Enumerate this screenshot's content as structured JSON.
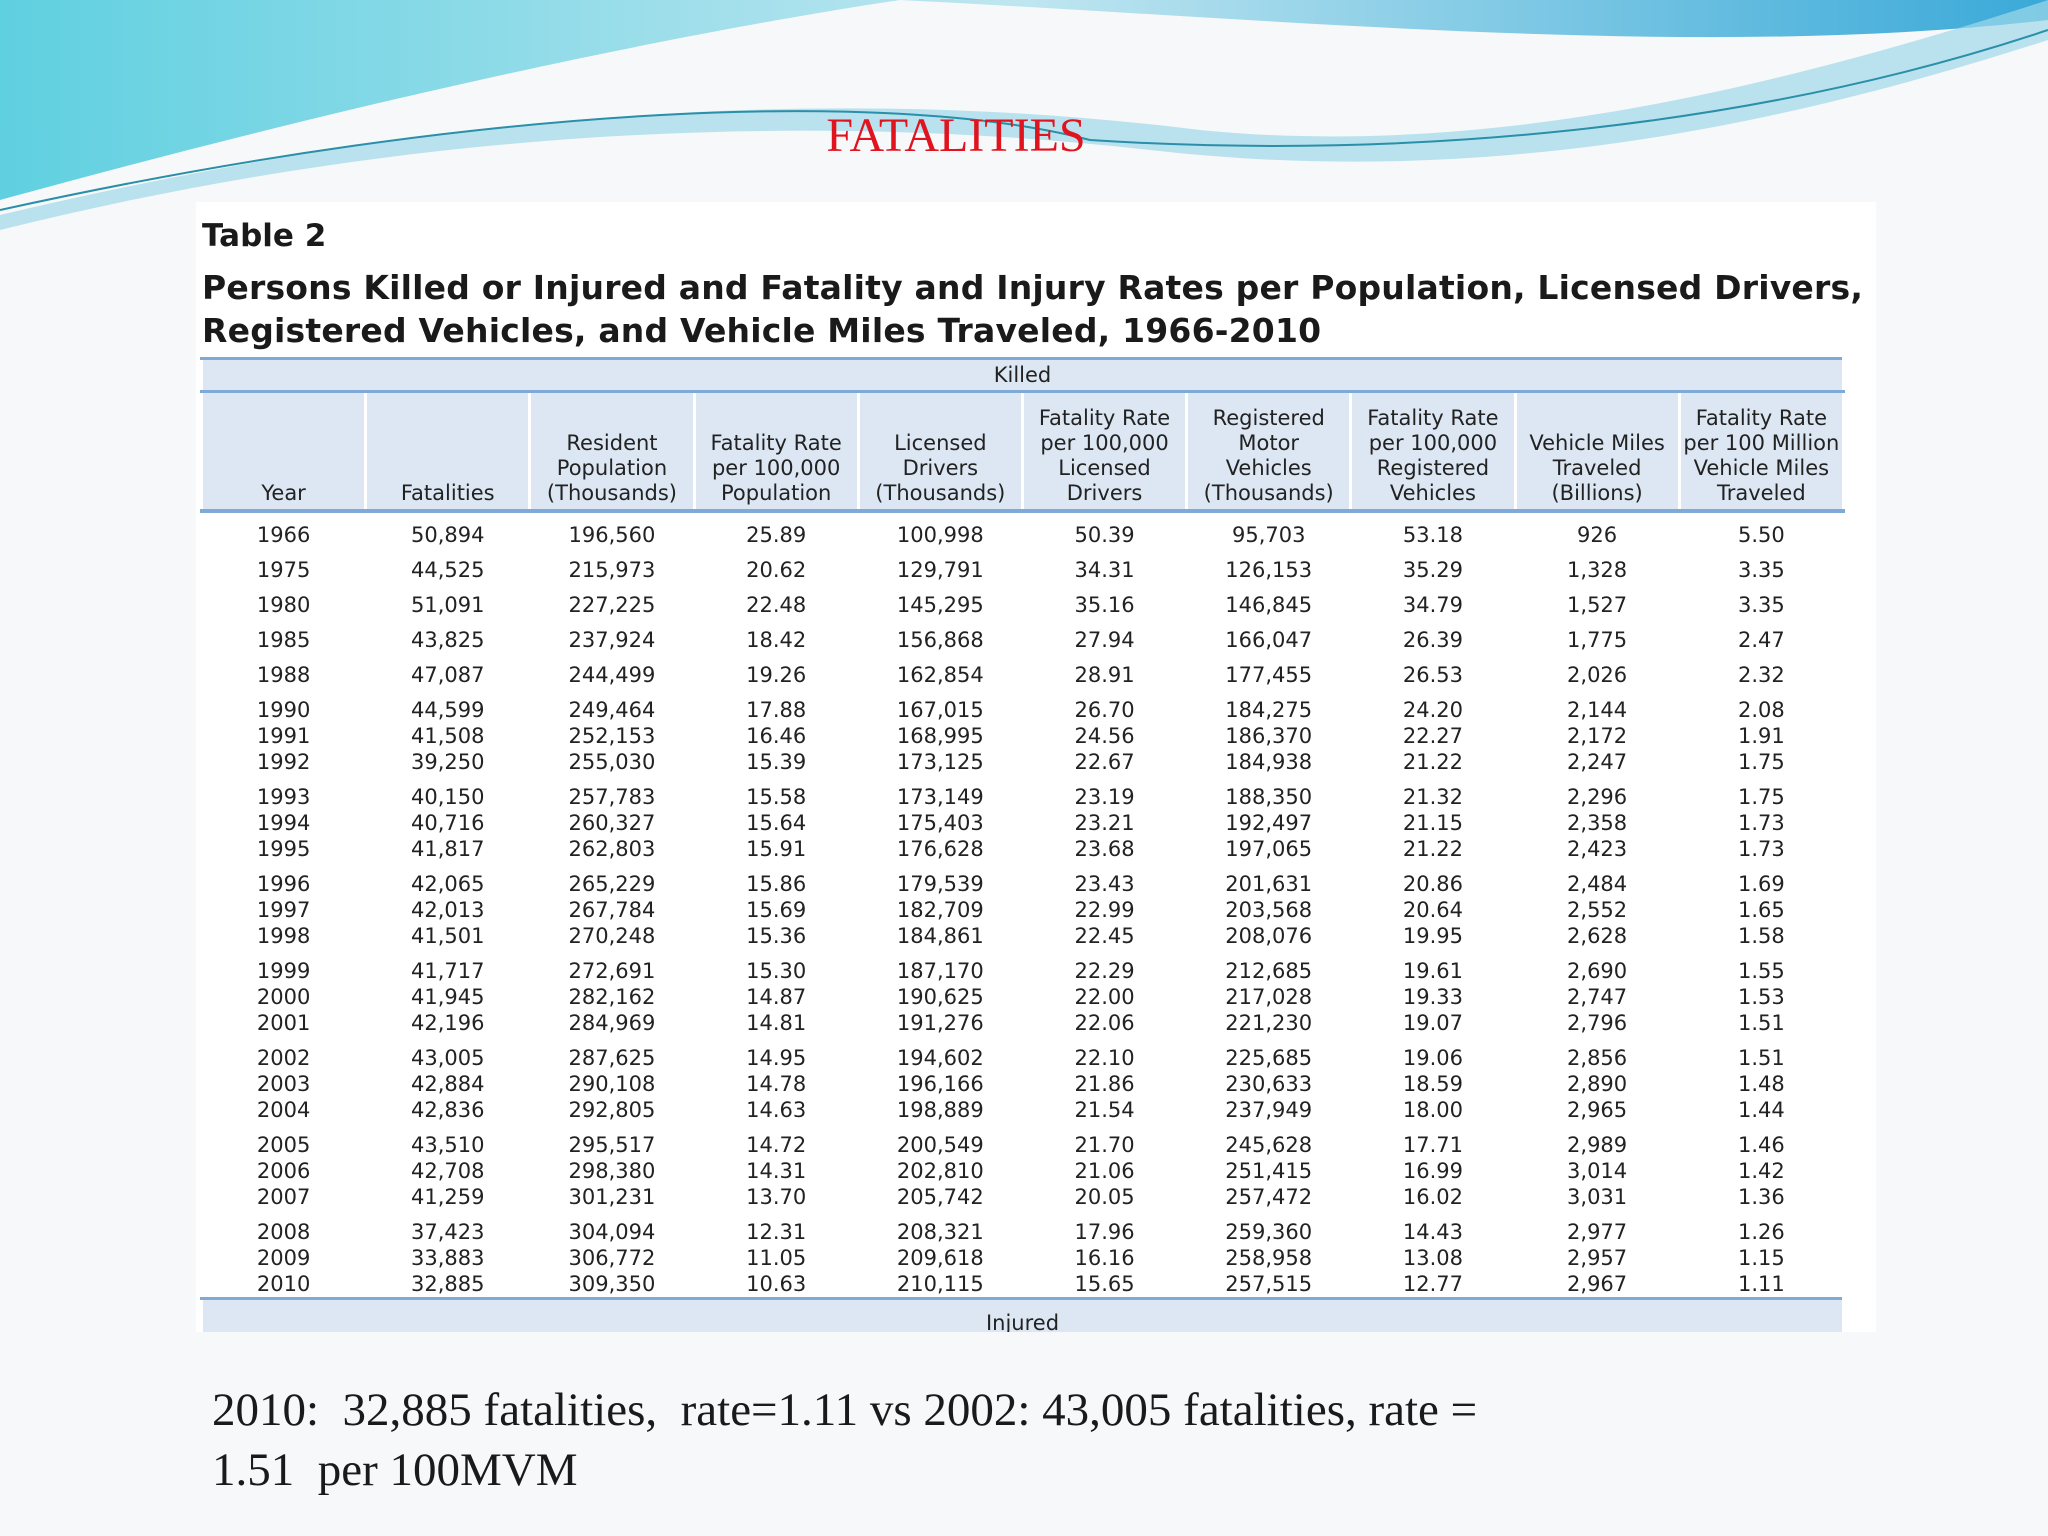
{
  "slide_title": "FATALITIES",
  "table": {
    "caption": "Table 2",
    "title": "Persons Killed or Injured and Fatality and Injury Rates per Population, Licensed Drivers,\nRegistered Vehicles, and Vehicle Miles Traveled, 1966-2010",
    "group_header": "Killed",
    "columns": [
      "Year",
      "Fatalities",
      "Resident\nPopulation\n(Thousands)",
      "Fatality Rate\nper 100,000\nPopulation",
      "Licensed\nDrivers\n(Thousands)",
      "Fatality Rate\nper 100,000\nLicensed\nDrivers",
      "Registered\nMotor\nVehicles\n(Thousands)",
      "Fatality Rate\nper 100,000\nRegistered\nVehicles",
      "Vehicle Miles\nTraveled\n(Billions)",
      "Fatality Rate\nper 100 Million\nVehicle Miles\nTraveled"
    ],
    "row_groups": [
      [
        [
          "1966",
          "50,894",
          "196,560",
          "25.89",
          "100,998",
          "50.39",
          "95,703",
          "53.18",
          "926",
          "5.50"
        ]
      ],
      [
        [
          "1975",
          "44,525",
          "215,973",
          "20.62",
          "129,791",
          "34.31",
          "126,153",
          "35.29",
          "1,328",
          "3.35"
        ]
      ],
      [
        [
          "1980",
          "51,091",
          "227,225",
          "22.48",
          "145,295",
          "35.16",
          "146,845",
          "34.79",
          "1,527",
          "3.35"
        ]
      ],
      [
        [
          "1985",
          "43,825",
          "237,924",
          "18.42",
          "156,868",
          "27.94",
          "166,047",
          "26.39",
          "1,775",
          "2.47"
        ]
      ],
      [
        [
          "1988",
          "47,087",
          "244,499",
          "19.26",
          "162,854",
          "28.91",
          "177,455",
          "26.53",
          "2,026",
          "2.32"
        ]
      ],
      [
        [
          "1990",
          "44,599",
          "249,464",
          "17.88",
          "167,015",
          "26.70",
          "184,275",
          "24.20",
          "2,144",
          "2.08"
        ],
        [
          "1991",
          "41,508",
          "252,153",
          "16.46",
          "168,995",
          "24.56",
          "186,370",
          "22.27",
          "2,172",
          "1.91"
        ],
        [
          "1992",
          "39,250",
          "255,030",
          "15.39",
          "173,125",
          "22.67",
          "184,938",
          "21.22",
          "2,247",
          "1.75"
        ]
      ],
      [
        [
          "1993",
          "40,150",
          "257,783",
          "15.58",
          "173,149",
          "23.19",
          "188,350",
          "21.32",
          "2,296",
          "1.75"
        ],
        [
          "1994",
          "40,716",
          "260,327",
          "15.64",
          "175,403",
          "23.21",
          "192,497",
          "21.15",
          "2,358",
          "1.73"
        ],
        [
          "1995",
          "41,817",
          "262,803",
          "15.91",
          "176,628",
          "23.68",
          "197,065",
          "21.22",
          "2,423",
          "1.73"
        ]
      ],
      [
        [
          "1996",
          "42,065",
          "265,229",
          "15.86",
          "179,539",
          "23.43",
          "201,631",
          "20.86",
          "2,484",
          "1.69"
        ],
        [
          "1997",
          "42,013",
          "267,784",
          "15.69",
          "182,709",
          "22.99",
          "203,568",
          "20.64",
          "2,552",
          "1.65"
        ],
        [
          "1998",
          "41,501",
          "270,248",
          "15.36",
          "184,861",
          "22.45",
          "208,076",
          "19.95",
          "2,628",
          "1.58"
        ]
      ],
      [
        [
          "1999",
          "41,717",
          "272,691",
          "15.30",
          "187,170",
          "22.29",
          "212,685",
          "19.61",
          "2,690",
          "1.55"
        ],
        [
          "2000",
          "41,945",
          "282,162",
          "14.87",
          "190,625",
          "22.00",
          "217,028",
          "19.33",
          "2,747",
          "1.53"
        ],
        [
          "2001",
          "42,196",
          "284,969",
          "14.81",
          "191,276",
          "22.06",
          "221,230",
          "19.07",
          "2,796",
          "1.51"
        ]
      ],
      [
        [
          "2002",
          "43,005",
          "287,625",
          "14.95",
          "194,602",
          "22.10",
          "225,685",
          "19.06",
          "2,856",
          "1.51"
        ],
        [
          "2003",
          "42,884",
          "290,108",
          "14.78",
          "196,166",
          "21.86",
          "230,633",
          "18.59",
          "2,890",
          "1.48"
        ],
        [
          "2004",
          "42,836",
          "292,805",
          "14.63",
          "198,889",
          "21.54",
          "237,949",
          "18.00",
          "2,965",
          "1.44"
        ]
      ],
      [
        [
          "2005",
          "43,510",
          "295,517",
          "14.72",
          "200,549",
          "21.70",
          "245,628",
          "17.71",
          "2,989",
          "1.46"
        ],
        [
          "2006",
          "42,708",
          "298,380",
          "14.31",
          "202,810",
          "21.06",
          "251,415",
          "16.99",
          "3,014",
          "1.42"
        ],
        [
          "2007",
          "41,259",
          "301,231",
          "13.70",
          "205,742",
          "20.05",
          "257,472",
          "16.02",
          "3,031",
          "1.36"
        ]
      ],
      [
        [
          "2008",
          "37,423",
          "304,094",
          "12.31",
          "208,321",
          "17.96",
          "259,360",
          "14.43",
          "2,977",
          "1.26"
        ],
        [
          "2009",
          "33,883",
          "306,772",
          "11.05",
          "209,618",
          "16.16",
          "258,958",
          "13.08",
          "2,957",
          "1.15"
        ],
        [
          "2010",
          "32,885",
          "309,350",
          "10.63",
          "210,115",
          "15.65",
          "257,515",
          "12.77",
          "2,967",
          "1.11"
        ]
      ]
    ],
    "next_group_header": "Injured"
  },
  "footer_text": "2010:  32,885 fatalities,  rate=1.11 vs 2002: 43,005 fatalities, rate =\n1.51  per 100MVM"
}
